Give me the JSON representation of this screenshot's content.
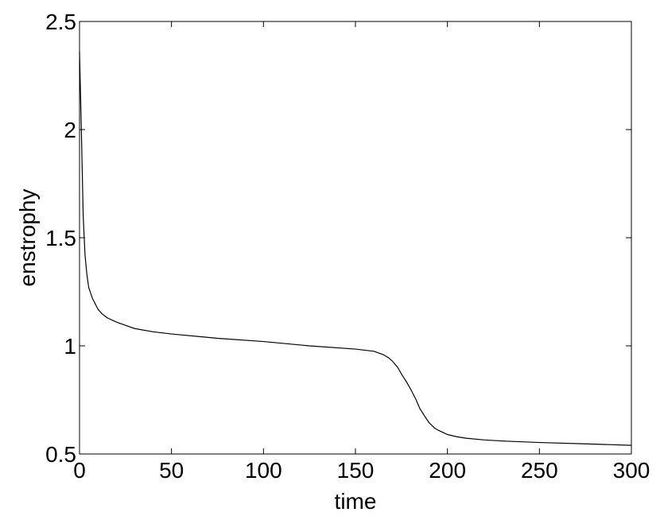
{
  "chart_data": {
    "type": "line",
    "xlabel": "time",
    "ylabel": "enstrophy",
    "x": [
      0,
      1,
      2,
      3,
      4,
      5,
      7,
      10,
      12,
      15,
      20,
      25,
      30,
      40,
      50,
      75,
      100,
      125,
      150,
      160,
      165,
      168,
      170,
      173,
      175,
      178,
      180,
      183,
      185,
      188,
      190,
      193,
      195,
      200,
      205,
      210,
      220,
      230,
      250,
      275,
      300
    ],
    "series": [
      {
        "color": "#000000",
        "values": [
          2.36,
          2.0,
          1.6,
          1.42,
          1.33,
          1.27,
          1.22,
          1.17,
          1.15,
          1.13,
          1.11,
          1.095,
          1.08,
          1.065,
          1.055,
          1.035,
          1.02,
          1.0,
          0.985,
          0.975,
          0.96,
          0.945,
          0.93,
          0.9,
          0.87,
          0.83,
          0.8,
          0.75,
          0.71,
          0.67,
          0.645,
          0.62,
          0.61,
          0.59,
          0.58,
          0.573,
          0.565,
          0.56,
          0.553,
          0.547,
          0.54
        ]
      }
    ],
    "xlim": [
      0,
      300
    ],
    "xticks": [
      0,
      50,
      100,
      150,
      200,
      250,
      300
    ],
    "ylim": [
      0.5,
      2.5
    ],
    "yticks": [
      0.5,
      1,
      1.5,
      2,
      2.5
    ],
    "grid": false
  }
}
